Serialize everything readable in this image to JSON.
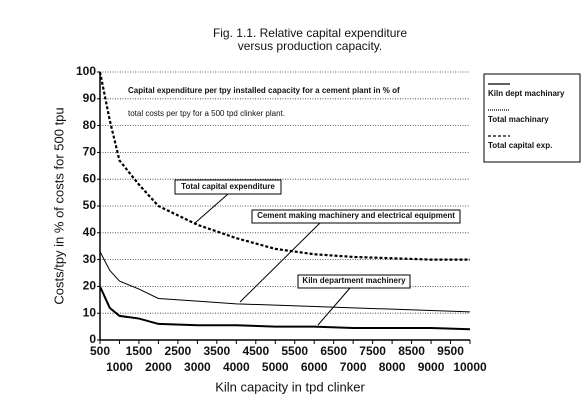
{
  "chart_data": {
    "type": "line",
    "title": "Fig. 1.1. Relative capital expenditure",
    "subtitle": "versus production capacity.",
    "x_label": "Kiln capacity in tpd clinker",
    "y_label": "Costs/tpy in % of costs for 500 tpu",
    "annotations": [
      "Capital expenditure per tpy installed capacity for  a cement plant in % of",
      "total costs per tpy for a 500 tpd clinker plant.",
      "Total capital  expenditure",
      "Cement making machinery  and electrical equipment",
      "Kiln department  machinery"
    ],
    "x": [
      500,
      750,
      1000,
      1500,
      2000,
      3000,
      4000,
      5000,
      6000,
      7000,
      8000,
      9000,
      10000
    ],
    "series": [
      {
        "name": "Kiln dept machinary",
        "color": "#000000",
        "values": [
          20,
          12,
          9,
          8,
          6,
          5.5,
          5.5,
          5,
          5,
          4.5,
          4.5,
          4.5,
          4
        ]
      },
      {
        "name": "Total machinary",
        "color": "#000000",
        "values": [
          33,
          26,
          22,
          19,
          15.5,
          14.5,
          13.5,
          13,
          12.5,
          12,
          11.5,
          11,
          10.5
        ]
      },
      {
        "name": "Total capital exp.",
        "color": "#000000",
        "values": [
          100,
          82,
          67,
          58,
          50,
          43,
          38,
          34,
          32,
          31,
          30.5,
          30,
          30
        ]
      }
    ],
    "xlim": [
      500,
      10000
    ],
    "xticks": [
      500,
      1000,
      1500,
      2000,
      2500,
      3000,
      3500,
      4000,
      4500,
      5000,
      5500,
      6000,
      6500,
      7000,
      7500,
      8000,
      8500,
      9000,
      9500,
      10000
    ],
    "ylim": [
      0,
      100
    ],
    "yticks": [
      0,
      10,
      20,
      30,
      40,
      50,
      60,
      70,
      80,
      90,
      100
    ],
    "grid": true,
    "legend": "right"
  }
}
